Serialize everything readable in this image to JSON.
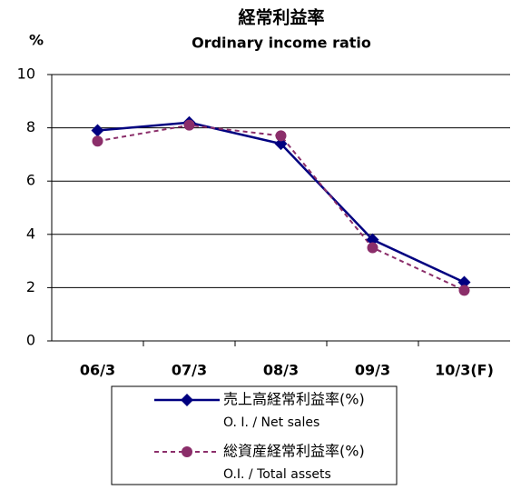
{
  "chart_data": {
    "type": "line",
    "title": "経常利益率",
    "subtitle": "Ordinary income ratio",
    "y_unit": "%",
    "categories": [
      "06/3",
      "07/3",
      "08/3",
      "09/3",
      "10/3(F)"
    ],
    "series": [
      {
        "name": "売上高経常利益率(%)",
        "name_en": "O. I. / Net sales",
        "color": "#000080",
        "marker": "diamond",
        "dash": false,
        "values": [
          7.9,
          8.2,
          7.4,
          3.8,
          2.2
        ]
      },
      {
        "name": "総資産経常利益率(%)",
        "name_en": "O.I. / Total assets",
        "color": "#8b2e6a",
        "marker": "circle",
        "dash": true,
        "values": [
          7.5,
          8.1,
          7.7,
          3.5,
          1.9
        ]
      }
    ],
    "ylim": [
      0,
      10
    ],
    "yticks": [
      0,
      2,
      4,
      6,
      8,
      10
    ],
    "grid": true
  }
}
